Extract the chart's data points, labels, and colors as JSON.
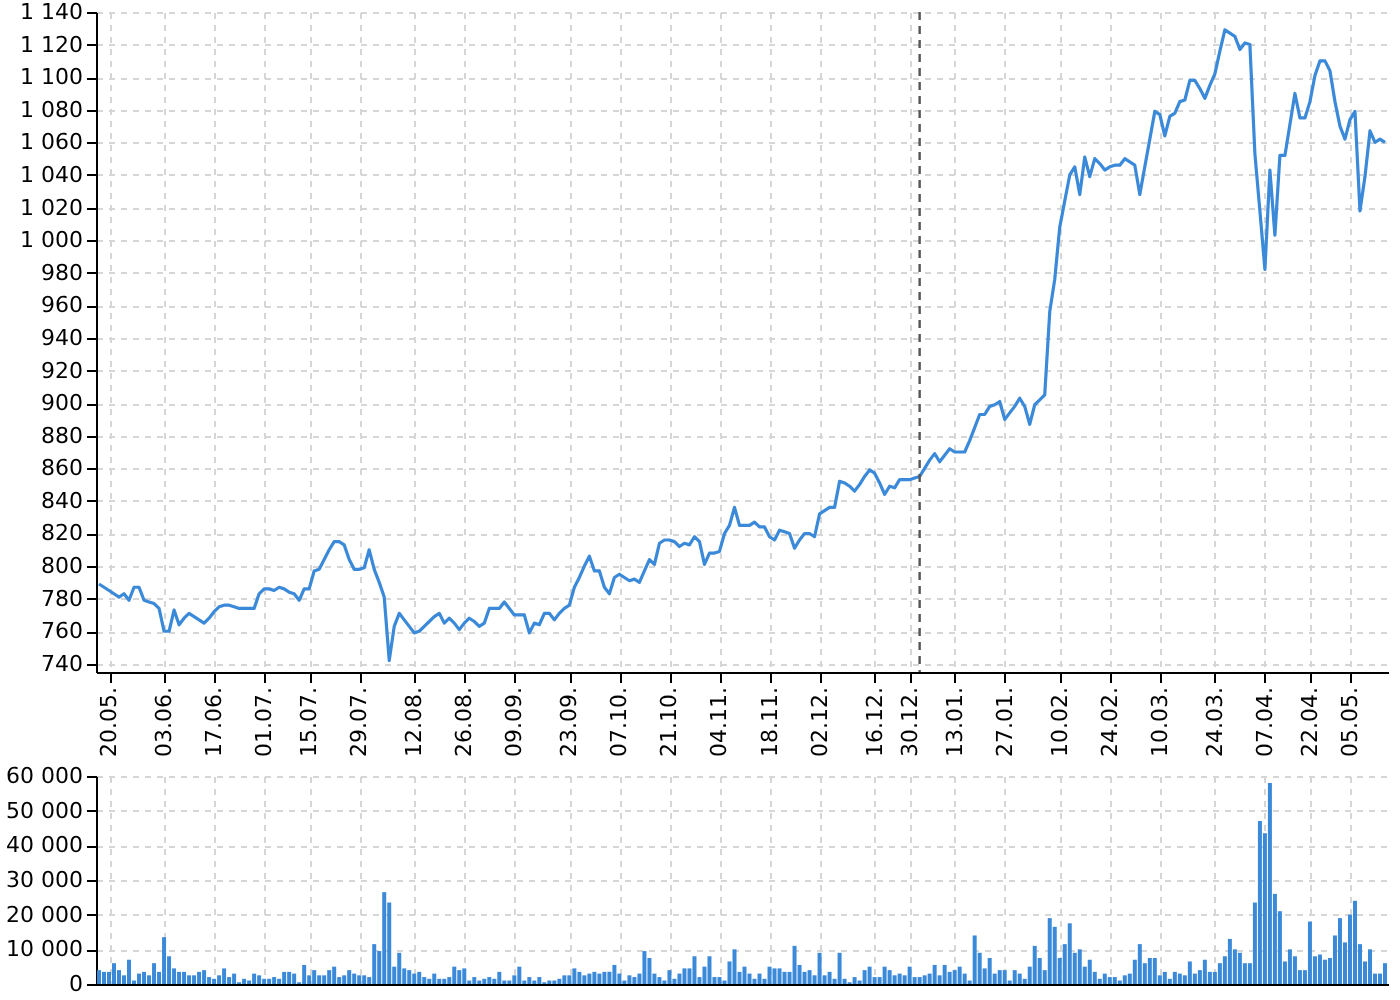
{
  "chart_data": [
    {
      "type": "line",
      "color": "#3b89d9",
      "categories": [
        null,
        null,
        "20.05.",
        null,
        null,
        null,
        null,
        null,
        null,
        null,
        null,
        null,
        null,
        "03.06.",
        null,
        null,
        null,
        null,
        null,
        null,
        null,
        null,
        null,
        "17.06.",
        null,
        null,
        null,
        null,
        null,
        null,
        null,
        null,
        null,
        "01.07.",
        null,
        null,
        null,
        null,
        null,
        null,
        null,
        null,
        "15.07.",
        null,
        null,
        null,
        null,
        null,
        null,
        null,
        null,
        null,
        "29.07.",
        null,
        null,
        null,
        null,
        null,
        null,
        null,
        null,
        null,
        null,
        "12.08.",
        null,
        null,
        null,
        null,
        null,
        null,
        null,
        null,
        null,
        "26.08.",
        null,
        null,
        null,
        null,
        null,
        null,
        null,
        null,
        null,
        "09.09.",
        null,
        null,
        null,
        null,
        null,
        null,
        null,
        null,
        null,
        null,
        "23.09.",
        null,
        null,
        null,
        null,
        null,
        null,
        null,
        null,
        null,
        "07.10.",
        null,
        null,
        null,
        null,
        null,
        null,
        null,
        null,
        null,
        "21.10.",
        null,
        null,
        null,
        null,
        null,
        null,
        null,
        null,
        null,
        "04.11.",
        null,
        null,
        null,
        null,
        null,
        null,
        null,
        null,
        null,
        "18.11.",
        null,
        null,
        null,
        null,
        null,
        null,
        null,
        null,
        null,
        "02.12.",
        null,
        null,
        null,
        null,
        null,
        null,
        null,
        null,
        null,
        null,
        "16.12.",
        null,
        null,
        null,
        null,
        null,
        null,
        "30.12.",
        null,
        null,
        null,
        null,
        null,
        null,
        null,
        null,
        "13.01.",
        null,
        null,
        null,
        null,
        null,
        null,
        null,
        null,
        null,
        "27.01.",
        null,
        null,
        null,
        null,
        null,
        null,
        null,
        null,
        null,
        null,
        "10.02.",
        null,
        null,
        null,
        null,
        null,
        null,
        null,
        null,
        null,
        "24.02.",
        null,
        null,
        null,
        null,
        null,
        null,
        null,
        null,
        null,
        "10.03.",
        null,
        null,
        null,
        null,
        null,
        null,
        null,
        null,
        null,
        null,
        "24.03.",
        null,
        null,
        null,
        null,
        null,
        null,
        null,
        null,
        null,
        "07.04.",
        null,
        null,
        null,
        null,
        null,
        null,
        null,
        null,
        "22.04.",
        null,
        null,
        null,
        null,
        null,
        null,
        null,
        "05.05.",
        null,
        null,
        null,
        null,
        null,
        null,
        null
      ],
      "values": [
        789,
        787,
        785,
        783,
        781,
        783,
        779,
        787,
        787,
        779,
        778,
        777,
        774,
        760,
        760,
        773,
        764,
        768,
        771,
        769,
        767,
        765,
        768,
        772,
        775,
        776,
        776,
        775,
        774,
        774,
        774,
        774,
        783,
        786,
        786,
        785,
        787,
        786,
        784,
        783,
        779,
        786,
        786,
        797,
        798,
        804,
        810,
        815,
        815,
        813,
        804,
        798,
        798,
        799,
        810,
        798,
        790,
        781,
        742,
        763,
        771,
        767,
        763,
        759,
        760,
        763,
        766,
        769,
        771,
        765,
        768,
        765,
        761,
        765,
        768,
        766,
        763,
        765,
        774,
        774,
        774,
        778,
        774,
        770,
        770,
        770,
        759,
        765,
        764,
        771,
        771,
        767,
        771,
        774,
        776,
        787,
        793,
        800,
        806,
        797,
        797,
        787,
        783,
        793,
        795,
        793,
        791,
        792,
        790,
        797,
        804,
        801,
        814,
        816,
        816,
        815,
        812,
        814,
        813,
        818,
        815,
        801,
        808,
        808,
        809,
        820,
        825,
        836,
        825,
        825,
        825,
        827,
        824,
        824,
        818,
        816,
        822,
        821,
        820,
        811,
        816,
        820,
        820,
        818,
        832,
        834,
        836,
        836,
        852,
        851,
        849,
        846,
        850,
        855,
        859,
        857,
        851,
        844,
        849,
        848,
        853,
        853,
        853,
        854,
        855,
        860,
        865,
        869,
        864,
        868,
        872,
        870,
        870,
        870,
        877,
        885,
        893,
        893,
        898,
        899,
        901,
        890,
        894,
        898,
        903,
        898,
        887,
        899,
        902,
        905,
        956,
        976,
        1008,
        1024,
        1040,
        1045,
        1028,
        1051,
        1039,
        1050,
        1047,
        1043,
        1045,
        1046,
        1046,
        1050,
        1048,
        1046,
        1028,
        1045,
        1062,
        1079,
        1077,
        1064,
        1076,
        1078,
        1085,
        1086,
        1098,
        1098,
        1093,
        1087,
        1095,
        1102,
        1116,
        1129,
        1127,
        1125,
        1117,
        1121,
        1120,
        1053,
        1018,
        982,
        1043,
        1003,
        1052,
        1052,
        1071,
        1090,
        1075,
        1075,
        1085,
        1101,
        1110,
        1110,
        1104,
        1085,
        1070,
        1062,
        1074,
        1079,
        1018,
        1039,
        1067,
        1060,
        1062,
        1060
      ],
      "ylim": [
        735,
        1140
      ],
      "yticks": [
        740,
        760,
        780,
        800,
        820,
        840,
        860,
        880,
        900,
        920,
        940,
        960,
        980,
        {
          "value": 1000,
          "label": "1 000"
        },
        {
          "value": 1020,
          "label": "1 020"
        },
        {
          "value": 1040,
          "label": "1 040"
        },
        {
          "value": 1060,
          "label": "1 060"
        },
        {
          "value": 1080,
          "label": "1 080"
        },
        {
          "value": 1100,
          "label": "1 100"
        },
        {
          "value": 1120,
          "label": "1 120"
        },
        {
          "value": 1140,
          "label": "1 140"
        }
      ],
      "grid": true
    },
    {
      "type": "bar",
      "color": "#3b89d9",
      "categories": [
        null,
        null,
        "20.05.",
        null,
        null,
        null,
        null,
        null,
        null,
        null,
        null,
        null,
        null,
        "03.06.",
        null,
        null,
        null,
        null,
        null,
        null,
        null,
        null,
        null,
        "17.06.",
        null,
        null,
        null,
        null,
        null,
        null,
        null,
        null,
        null,
        "01.07.",
        null,
        null,
        null,
        null,
        null,
        null,
        null,
        null,
        "15.07.",
        null,
        null,
        null,
        null,
        null,
        null,
        null,
        null,
        null,
        "29.07.",
        null,
        null,
        null,
        null,
        null,
        null,
        null,
        null,
        null,
        null,
        "12.08.",
        null,
        null,
        null,
        null,
        null,
        null,
        null,
        null,
        null,
        "26.08.",
        null,
        null,
        null,
        null,
        null,
        null,
        null,
        null,
        null,
        "09.09.",
        null,
        null,
        null,
        null,
        null,
        null,
        null,
        null,
        null,
        null,
        "23.09.",
        null,
        null,
        null,
        null,
        null,
        null,
        null,
        null,
        null,
        "07.10.",
        null,
        null,
        null,
        null,
        null,
        null,
        null,
        null,
        null,
        "21.10.",
        null,
        null,
        null,
        null,
        null,
        null,
        null,
        null,
        null,
        "04.11.",
        null,
        null,
        null,
        null,
        null,
        null,
        null,
        null,
        null,
        "18.11.",
        null,
        null,
        null,
        null,
        null,
        null,
        null,
        null,
        null,
        "02.12.",
        null,
        null,
        null,
        null,
        null,
        null,
        null,
        null,
        null,
        null,
        "16.12.",
        null,
        null,
        null,
        null,
        null,
        null,
        "30.12.",
        null,
        null,
        null,
        null,
        null,
        null,
        null,
        null,
        "13.01.",
        null,
        null,
        null,
        null,
        null,
        null,
        null,
        null,
        null,
        "27.01.",
        null,
        null,
        null,
        null,
        null,
        null,
        null,
        null,
        null,
        null,
        "10.02.",
        null,
        null,
        null,
        null,
        null,
        null,
        null,
        null,
        null,
        "24.02.",
        null,
        null,
        null,
        null,
        null,
        null,
        null,
        null,
        null,
        "10.03.",
        null,
        null,
        null,
        null,
        null,
        null,
        null,
        null,
        null,
        null,
        "24.03.",
        null,
        null,
        null,
        null,
        null,
        null,
        null,
        null,
        null,
        "07.04.",
        null,
        null,
        null,
        null,
        null,
        null,
        null,
        null,
        "22.04.",
        null,
        null,
        null,
        null,
        null,
        null,
        null,
        "05.05.",
        null,
        null,
        null,
        null,
        null,
        null,
        null
      ],
      "values": [
        4000,
        3500,
        3500,
        6000,
        4000,
        2500,
        7000,
        1000,
        3000,
        3500,
        2500,
        6000,
        3500,
        13500,
        8000,
        4500,
        3500,
        3500,
        2500,
        2500,
        3500,
        4000,
        2000,
        1500,
        2500,
        4500,
        2000,
        3000,
        500,
        1500,
        1000,
        3000,
        2500,
        1500,
        1500,
        2000,
        1500,
        3500,
        3500,
        3000,
        500,
        5500,
        2500,
        4000,
        2500,
        2500,
        4000,
        5000,
        2000,
        2500,
        4000,
        3000,
        2500,
        2500,
        2000,
        11500,
        9500,
        26500,
        23500,
        5000,
        9000,
        4500,
        4000,
        3000,
        3500,
        2000,
        1500,
        3000,
        1500,
        1500,
        2000,
        5000,
        4000,
        4500,
        1000,
        2000,
        1000,
        1500,
        2000,
        1500,
        3500,
        1000,
        1000,
        2500,
        5000,
        1000,
        2000,
        1000,
        2000,
        500,
        1000,
        1000,
        1500,
        2500,
        2500,
        4500,
        3500,
        2500,
        3000,
        3500,
        3000,
        3500,
        3500,
        5500,
        3000,
        1000,
        2500,
        2000,
        3000,
        9500,
        7500,
        3000,
        2000,
        1000,
        4000,
        1500,
        3000,
        4500,
        4500,
        8000,
        2000,
        5000,
        8000,
        2000,
        2000,
        1000,
        6500,
        10000,
        3500,
        5000,
        3000,
        1500,
        3000,
        1500,
        5000,
        4500,
        4500,
        3500,
        3500,
        11000,
        5500,
        3500,
        4000,
        2500,
        9000,
        2500,
        3500,
        1500,
        9000,
        1500,
        500,
        2000,
        1000,
        4000,
        5000,
        2000,
        2000,
        5000,
        4000,
        2500,
        3000,
        2500,
        5000,
        2000,
        2000,
        2500,
        3000,
        5500,
        2500,
        5500,
        3500,
        4000,
        5000,
        3000,
        1000,
        14000,
        9000,
        4500,
        7500,
        3000,
        4000,
        4000,
        1000,
        4000,
        3000,
        1500,
        5000,
        11000,
        7500,
        4000,
        19000,
        16500,
        7500,
        11500,
        17500,
        9000,
        10000,
        5000,
        7000,
        3500,
        1500,
        3000,
        2000,
        2000,
        1000,
        2500,
        3000,
        7000,
        11500,
        6000,
        7500,
        7500,
        2500,
        3500,
        1500,
        3500,
        3000,
        2500,
        6500,
        3000,
        4000,
        7000,
        3500,
        3500,
        6000,
        8000,
        13000,
        10000,
        9000,
        6000,
        6000,
        23500,
        47000,
        43500,
        58000,
        26000,
        21000,
        6500,
        10000,
        8000,
        4000,
        4000,
        18000,
        8000,
        8500,
        7000,
        7500,
        14000,
        19000,
        12000,
        20000,
        24000,
        11500,
        6500,
        10000,
        3000,
        3000,
        6000
      ],
      "ylim": [
        0,
        60000
      ],
      "yticks": [
        0,
        {
          "value": 10000,
          "label": "10 000"
        },
        {
          "value": 20000,
          "label": "20 000"
        },
        {
          "value": 30000,
          "label": "30 000"
        },
        {
          "value": 40000,
          "label": "40 000"
        },
        {
          "value": 50000,
          "label": "50 000"
        },
        {
          "value": 60000,
          "label": "60 000"
        }
      ],
      "grid": true,
      "tick_labels": "y"
    }
  ]
}
